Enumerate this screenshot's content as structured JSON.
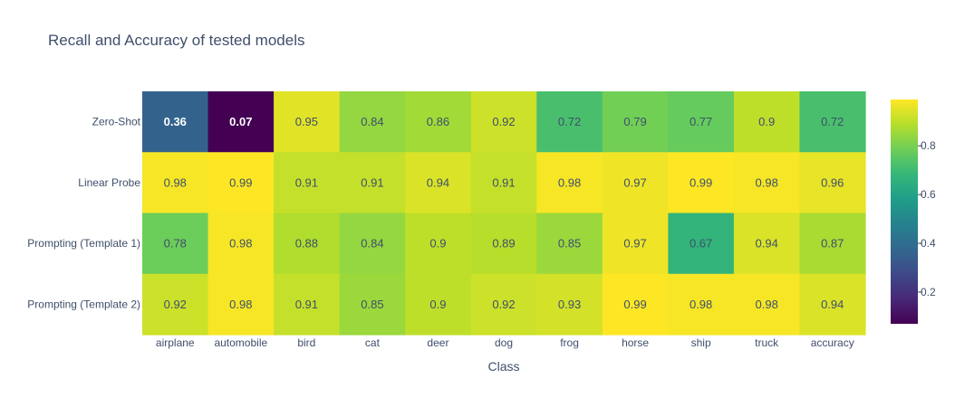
{
  "chart_data": {
    "type": "heatmap",
    "title": "Recall and Accuracy of tested models",
    "xlabel": "Class",
    "ylabel": "",
    "x": [
      "airplane",
      "automobile",
      "bird",
      "cat",
      "deer",
      "dog",
      "frog",
      "horse",
      "ship",
      "truck",
      "accuracy"
    ],
    "y": [
      "Zero-Shot",
      "Linear Probe",
      "Prompting (Template 1)",
      "Prompting (Template 2)"
    ],
    "z": [
      [
        0.36,
        0.07,
        0.95,
        0.84,
        0.86,
        0.92,
        0.72,
        0.79,
        0.77,
        0.9,
        0.72
      ],
      [
        0.98,
        0.99,
        0.91,
        0.91,
        0.94,
        0.91,
        0.98,
        0.97,
        0.99,
        0.98,
        0.96
      ],
      [
        0.78,
        0.98,
        0.88,
        0.84,
        0.9,
        0.89,
        0.85,
        0.97,
        0.67,
        0.94,
        0.87
      ],
      [
        0.92,
        0.98,
        0.91,
        0.85,
        0.9,
        0.92,
        0.93,
        0.99,
        0.98,
        0.98,
        0.94
      ]
    ],
    "colorscale": "Viridis",
    "zmin": 0.07,
    "zmax": 0.99,
    "colorbar_ticks": [
      0.2,
      0.4,
      0.6,
      0.8
    ],
    "colorbar_tick_labels": [
      "0.2",
      "0.4",
      "0.6",
      "0.8"
    ],
    "grid": false,
    "legend": "colorbar-right"
  }
}
